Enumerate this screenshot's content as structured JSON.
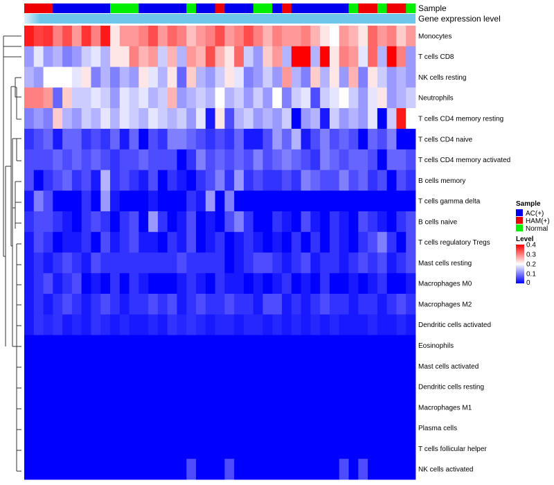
{
  "chart_data": {
    "type": "heatmap",
    "annotations": {
      "sample_label": "Sample",
      "expression_label": "Gene expression level"
    },
    "legend": {
      "sample_title": "Sample",
      "groups": [
        {
          "key": "A",
          "label": "AC(+)",
          "color": "#0000ee"
        },
        {
          "key": "H",
          "label": "HAM(+)",
          "color": "#ee0000"
        },
        {
          "key": "N",
          "label": "Normal",
          "color": "#00ee00"
        }
      ],
      "level_title": "Level",
      "level_ticks": [
        "0.4",
        "0.3",
        "0.2",
        "0.1",
        "0"
      ],
      "level_tick_values": [
        0.4,
        0.3,
        0.2,
        0.1,
        0
      ],
      "color_low": "#0000ff",
      "color_mid": "#ffffff",
      "color_high": "#ff0000",
      "range": [
        0,
        0.4
      ]
    },
    "expression_bar_color": "#6ec6ea",
    "expression_bar_end_color": "#e2eff7",
    "sample_groups": [
      "H",
      "H",
      "H",
      "A",
      "A",
      "A",
      "A",
      "A",
      "A",
      "N",
      "N",
      "N",
      "A",
      "A",
      "A",
      "A",
      "A",
      "N",
      "A",
      "A",
      "H",
      "A",
      "A",
      "A",
      "N",
      "N",
      "A",
      "H",
      "A",
      "A",
      "A",
      "A",
      "A",
      "A",
      "N",
      "H",
      "H",
      "N",
      "H",
      "H",
      "N"
    ],
    "rows": [
      "Monocytes",
      "T cells CD8",
      "NK cells resting",
      "Neutrophils",
      "T cells CD4 memory resting",
      "T cells CD4 naive",
      "T cells CD4 memory activated",
      "B cells memory",
      "T cells gamma delta",
      "B cells naive",
      "T cells regulatory  Tregs",
      "Mast cells resting",
      "Macrophages M0",
      "Macrophages M2",
      "Dendritic cells activated",
      "Eosinophils",
      "Mast cells activated",
      "Dendritic cells resting",
      "Macrophages M1",
      "Plasma cells",
      "T cells follicular helper",
      "NK cells activated"
    ],
    "values": [
      [
        0.38,
        0.35,
        0.36,
        0.3,
        0.34,
        0.28,
        0.36,
        0.3,
        0.38,
        0.22,
        0.28,
        0.28,
        0.3,
        0.34,
        0.28,
        0.32,
        0.3,
        0.25,
        0.28,
        0.3,
        0.34,
        0.28,
        0.3,
        0.34,
        0.3,
        0.26,
        0.3,
        0.28,
        0.28,
        0.3,
        0.26,
        0.22,
        0.2,
        0.28,
        0.26,
        0.22,
        0.32,
        0.28,
        0.3,
        0.24,
        0.28
      ],
      [
        0.12,
        0.18,
        0.12,
        0.14,
        0.1,
        0.12,
        0.16,
        0.18,
        0.14,
        0.22,
        0.22,
        0.3,
        0.26,
        0.28,
        0.16,
        0.26,
        0.14,
        0.28,
        0.26,
        0.34,
        0.26,
        0.22,
        0.32,
        0.16,
        0.12,
        0.24,
        0.28,
        0.14,
        0.4,
        0.4,
        0.14,
        0.4,
        0.22,
        0.3,
        0.28,
        0.18,
        0.32,
        0.14,
        0.4,
        0.3,
        0.12
      ],
      [
        0.14,
        0.12,
        0.2,
        0.2,
        0.2,
        0.18,
        0.22,
        0.1,
        0.14,
        0.1,
        0.14,
        0.12,
        0.22,
        0.18,
        0.14,
        0.22,
        0.08,
        0.24,
        0.14,
        0.12,
        0.16,
        0.22,
        0.18,
        0.1,
        0.12,
        0.16,
        0.12,
        0.28,
        0.14,
        0.1,
        0.24,
        0.14,
        0.22,
        0.12,
        0.26,
        0.1,
        0.22,
        0.16,
        0.12,
        0.14,
        0.12
      ],
      [
        0.3,
        0.3,
        0.28,
        0.08,
        0.24,
        0.16,
        0.16,
        0.18,
        0.16,
        0.12,
        0.18,
        0.16,
        0.18,
        0.14,
        0.16,
        0.26,
        0.12,
        0.14,
        0.16,
        0.14,
        0.2,
        0.14,
        0.16,
        0.12,
        0.16,
        0.12,
        0.2,
        0.1,
        0.16,
        0.18,
        0.06,
        0.16,
        0.18,
        0.2,
        0.16,
        0.12,
        0.18,
        0.22,
        0.12,
        0.14,
        0.16
      ],
      [
        0.1,
        0.12,
        0.1,
        0.24,
        0.14,
        0.12,
        0.16,
        0.14,
        0.18,
        0.14,
        0.18,
        0.16,
        0.14,
        0.18,
        0.16,
        0.14,
        0.16,
        0.12,
        0.18,
        0.02,
        0.22,
        0.06,
        0.14,
        0.16,
        0.12,
        0.14,
        0.12,
        0.16,
        0.0,
        0.12,
        0.14,
        0.02,
        0.16,
        0.12,
        0.14,
        0.12,
        0.18,
        0.0,
        0.16,
        0.38,
        0.2
      ],
      [
        0.04,
        0.06,
        0.08,
        0.02,
        0.08,
        0.08,
        0.04,
        0.06,
        0.04,
        0.08,
        0.02,
        0.08,
        0.0,
        0.06,
        0.04,
        0.1,
        0.1,
        0.08,
        0.06,
        0.04,
        0.06,
        0.04,
        0.08,
        0.02,
        0.02,
        0.06,
        0.12,
        0.08,
        0.14,
        0.02,
        0.06,
        0.1,
        0.06,
        0.08,
        0.06,
        0.0,
        0.08,
        0.06,
        0.1,
        0.0,
        0.0
      ],
      [
        0.06,
        0.06,
        0.06,
        0.08,
        0.06,
        0.08,
        0.06,
        0.08,
        0.06,
        0.04,
        0.06,
        0.06,
        0.08,
        0.06,
        0.06,
        0.06,
        0.0,
        0.04,
        0.1,
        0.06,
        0.08,
        0.06,
        0.08,
        0.06,
        0.1,
        0.06,
        0.08,
        0.1,
        0.08,
        0.06,
        0.04,
        0.1,
        0.08,
        0.06,
        0.08,
        0.08,
        0.06,
        0.0,
        0.08,
        0.08,
        0.06
      ],
      [
        0.06,
        0.0,
        0.04,
        0.06,
        0.08,
        0.04,
        0.06,
        0.02,
        0.14,
        0.04,
        0.06,
        0.04,
        0.02,
        0.06,
        0.0,
        0.04,
        0.02,
        0.0,
        0.04,
        0.06,
        0.1,
        0.04,
        0.12,
        0.04,
        0.06,
        0.04,
        0.04,
        0.06,
        0.04,
        0.1,
        0.08,
        0.06,
        0.06,
        0.1,
        0.06,
        0.08,
        0.04,
        0.06,
        0.0,
        0.06,
        0.04
      ],
      [
        0.02,
        0.1,
        0.06,
        0.0,
        0.0,
        0.0,
        0.04,
        0.0,
        0.12,
        0.02,
        0.0,
        0.0,
        0.0,
        0.02,
        0.0,
        0.0,
        0.0,
        0.04,
        0.02,
        0.12,
        0.0,
        0.1,
        0.0,
        0.0,
        0.0,
        0.0,
        0.0,
        0.0,
        0.0,
        0.0,
        0.0,
        0.0,
        0.0,
        0.0,
        0.0,
        0.0,
        0.0,
        0.0,
        0.0,
        0.0,
        0.0
      ],
      [
        0.04,
        0.06,
        0.06,
        0.04,
        0.02,
        0.0,
        0.04,
        0.06,
        0.04,
        0.0,
        0.04,
        0.06,
        0.0,
        0.12,
        0.04,
        0.0,
        0.02,
        0.06,
        0.0,
        0.02,
        0.0,
        0.06,
        0.1,
        0.04,
        0.0,
        0.0,
        0.04,
        0.02,
        0.0,
        0.06,
        0.02,
        0.0,
        0.04,
        0.02,
        0.0,
        0.06,
        0.04,
        0.02,
        0.0,
        0.04,
        0.06
      ],
      [
        0.02,
        0.06,
        0.04,
        0.0,
        0.02,
        0.02,
        0.04,
        0.0,
        0.06,
        0.02,
        0.04,
        0.06,
        0.02,
        0.02,
        0.0,
        0.04,
        0.02,
        0.06,
        0.0,
        0.02,
        0.04,
        0.0,
        0.02,
        0.04,
        0.02,
        0.0,
        0.02,
        0.0,
        0.04,
        0.0,
        0.04,
        0.0,
        0.04,
        0.02,
        0.0,
        0.04,
        0.06,
        0.1,
        0.04,
        0.0,
        0.06
      ],
      [
        0.02,
        0.04,
        0.02,
        0.04,
        0.06,
        0.04,
        0.02,
        0.06,
        0.04,
        0.04,
        0.04,
        0.04,
        0.04,
        0.04,
        0.04,
        0.04,
        0.06,
        0.04,
        0.04,
        0.04,
        0.04,
        0.0,
        0.02,
        0.04,
        0.06,
        0.06,
        0.04,
        0.02,
        0.04,
        0.06,
        0.02,
        0.04,
        0.04,
        0.02,
        0.04,
        0.06,
        0.04,
        0.06,
        0.02,
        0.04,
        0.06
      ],
      [
        0.02,
        0.04,
        0.06,
        0.02,
        0.04,
        0.06,
        0.0,
        0.02,
        0.0,
        0.04,
        0.0,
        0.04,
        0.02,
        0.0,
        0.0,
        0.0,
        0.02,
        0.04,
        0.02,
        0.0,
        0.04,
        0.02,
        0.02,
        0.0,
        0.02,
        0.0,
        0.02,
        0.04,
        0.0,
        0.02,
        0.0,
        0.04,
        0.0,
        0.0,
        0.02,
        0.0,
        0.02,
        0.04,
        0.0,
        0.0,
        0.02
      ],
      [
        0.02,
        0.04,
        0.02,
        0.04,
        0.06,
        0.04,
        0.02,
        0.04,
        0.06,
        0.04,
        0.02,
        0.04,
        0.04,
        0.06,
        0.04,
        0.06,
        0.02,
        0.04,
        0.06,
        0.04,
        0.04,
        0.06,
        0.04,
        0.04,
        0.02,
        0.06,
        0.06,
        0.02,
        0.04,
        0.02,
        0.04,
        0.06,
        0.04,
        0.04,
        0.02,
        0.04,
        0.04,
        0.02,
        0.04,
        0.06,
        0.04
      ],
      [
        0.02,
        0.04,
        0.03,
        0.04,
        0.02,
        0.03,
        0.02,
        0.04,
        0.03,
        0.02,
        0.03,
        0.02,
        0.02,
        0.03,
        0.02,
        0.04,
        0.03,
        0.04,
        0.03,
        0.02,
        0.03,
        0.03,
        0.02,
        0.03,
        0.03,
        0.02,
        0.03,
        0.02,
        0.03,
        0.02,
        0.03,
        0.02,
        0.03,
        0.02,
        0.02,
        0.02,
        0.03,
        0.02,
        0.02,
        0.03,
        0.02
      ],
      [
        0,
        0,
        0,
        0,
        0,
        0,
        0,
        0,
        0,
        0,
        0,
        0,
        0,
        0,
        0,
        0,
        0,
        0,
        0,
        0,
        0,
        0,
        0,
        0,
        0,
        0,
        0,
        0,
        0,
        0,
        0,
        0,
        0,
        0,
        0,
        0,
        0,
        0,
        0,
        0,
        0
      ],
      [
        0,
        0,
        0,
        0,
        0,
        0,
        0,
        0,
        0,
        0,
        0,
        0,
        0,
        0,
        0,
        0,
        0,
        0,
        0,
        0,
        0,
        0,
        0,
        0,
        0,
        0,
        0,
        0,
        0,
        0,
        0,
        0,
        0,
        0,
        0,
        0,
        0,
        0,
        0,
        0,
        0
      ],
      [
        0,
        0,
        0,
        0,
        0,
        0,
        0,
        0,
        0,
        0,
        0,
        0,
        0,
        0,
        0,
        0,
        0,
        0,
        0,
        0,
        0,
        0,
        0,
        0,
        0,
        0,
        0,
        0,
        0,
        0,
        0,
        0,
        0,
        0,
        0,
        0,
        0,
        0,
        0,
        0,
        0
      ],
      [
        0,
        0,
        0,
        0,
        0,
        0,
        0,
        0,
        0,
        0,
        0,
        0,
        0,
        0,
        0,
        0,
        0,
        0,
        0,
        0,
        0,
        0,
        0,
        0,
        0,
        0,
        0,
        0,
        0,
        0,
        0,
        0,
        0,
        0,
        0,
        0,
        0,
        0,
        0,
        0,
        0
      ],
      [
        0,
        0,
        0,
        0,
        0,
        0,
        0,
        0,
        0,
        0,
        0,
        0,
        0,
        0,
        0,
        0,
        0,
        0,
        0,
        0,
        0,
        0,
        0,
        0,
        0,
        0,
        0,
        0,
        0,
        0,
        0,
        0,
        0,
        0,
        0,
        0,
        0,
        0,
        0,
        0,
        0
      ],
      [
        0,
        0,
        0,
        0,
        0,
        0,
        0,
        0,
        0,
        0,
        0,
        0,
        0,
        0,
        0,
        0,
        0,
        0,
        0,
        0,
        0,
        0,
        0,
        0,
        0,
        0,
        0,
        0,
        0,
        0,
        0,
        0,
        0,
        0,
        0,
        0,
        0,
        0,
        0,
        0,
        0
      ],
      [
        0,
        0,
        0,
        0,
        0,
        0,
        0,
        0,
        0,
        0,
        0,
        0,
        0,
        0,
        0,
        0,
        0,
        0.06,
        0,
        0,
        0,
        0.06,
        0,
        0,
        0,
        0,
        0,
        0,
        0,
        0,
        0,
        0,
        0,
        0.06,
        0,
        0.06,
        0,
        0,
        0,
        0,
        0
      ]
    ]
  }
}
